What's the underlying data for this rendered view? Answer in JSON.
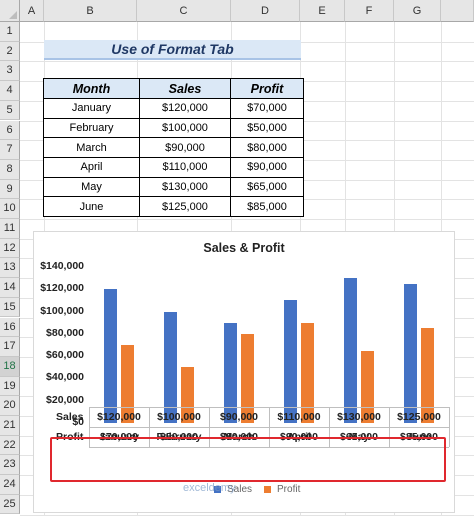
{
  "sheet": {
    "columns": [
      "A",
      "B",
      "C",
      "D",
      "E",
      "F",
      "G"
    ],
    "rows": [
      "1",
      "2",
      "3",
      "4",
      "5",
      "6",
      "7",
      "8",
      "9",
      "10",
      "11",
      "12",
      "13",
      "14",
      "15",
      "16",
      "17",
      "18",
      "19",
      "20",
      "21",
      "22",
      "23",
      "24",
      "25"
    ],
    "selected_row": "18"
  },
  "title": "Use of Format Tab",
  "table": {
    "headers": [
      "Month",
      "Sales",
      "Profit"
    ],
    "rows": [
      [
        "January",
        "$120,000",
        "$70,000"
      ],
      [
        "February",
        "$100,000",
        "$50,000"
      ],
      [
        "March",
        "$90,000",
        "$80,000"
      ],
      [
        "April",
        "$110,000",
        "$90,000"
      ],
      [
        "May",
        "$130,000",
        "$65,000"
      ],
      [
        "June",
        "$125,000",
        "$85,000"
      ]
    ]
  },
  "chart_data": {
    "type": "bar",
    "title": "Sales & Profit",
    "categories": [
      "January",
      "February",
      "March",
      "April",
      "May",
      "June"
    ],
    "series": [
      {
        "name": "Sales",
        "values": [
          120000,
          100000,
          90000,
          110000,
          130000,
          125000
        ],
        "color": "#4472c4"
      },
      {
        "name": "Profit",
        "values": [
          70000,
          50000,
          80000,
          90000,
          65000,
          85000
        ],
        "color": "#ed7d31"
      }
    ],
    "ylim": [
      0,
      140000
    ],
    "yticks": [
      "$140,000",
      "$120,000",
      "$100,000",
      "$80,000",
      "$60,000",
      "$40,000",
      "$20,000",
      "$0"
    ],
    "data_table": {
      "Sales": [
        "$120,000",
        "$100,000",
        "$90,000",
        "$110,000",
        "$130,000",
        "$125,000"
      ],
      "Profit": [
        "$70,000",
        "$50,000",
        "$80,000",
        "$90,000",
        "$65,000",
        "$85,000"
      ]
    },
    "legend": "bottom"
  },
  "watermark": "exceldemy"
}
